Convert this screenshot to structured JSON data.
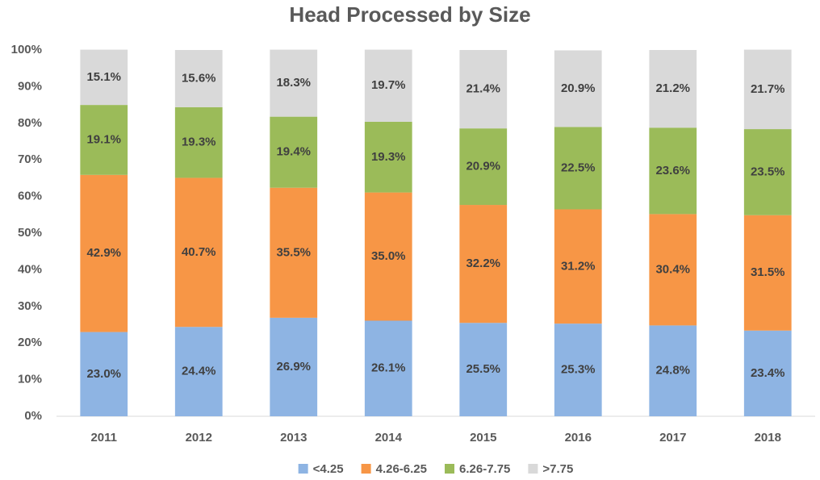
{
  "chart_data": {
    "type": "stacked_bar",
    "title": "Head Processed by Size",
    "categories": [
      "2011",
      "2012",
      "2013",
      "2014",
      "2015",
      "2016",
      "2017",
      "2018"
    ],
    "series": [
      {
        "name": "<4.25",
        "color": "#8eb4e3",
        "values": [
          23.0,
          24.4,
          26.9,
          26.1,
          25.5,
          25.3,
          24.8,
          23.4
        ],
        "value_labels": [
          "23.0%",
          "24.4%",
          "26.9%",
          "26.1%",
          "25.5%",
          "25.3%",
          "24.8%",
          "23.4%"
        ]
      },
      {
        "name": "4.26-6.25",
        "color": "#f79646",
        "values": [
          42.9,
          40.7,
          35.5,
          35.0,
          32.2,
          31.2,
          30.4,
          31.5
        ],
        "value_labels": [
          "42.9%",
          "40.7%",
          "35.5%",
          "35.0%",
          "32.2%",
          "31.2%",
          "30.4%",
          "31.5%"
        ]
      },
      {
        "name": "6.26-7.75",
        "color": "#9bbb59",
        "values": [
          19.1,
          19.3,
          19.4,
          19.3,
          20.9,
          22.5,
          23.6,
          23.5
        ],
        "value_labels": [
          "19.1%",
          "19.3%",
          "19.4%",
          "19.3%",
          "20.9%",
          "22.5%",
          "23.6%",
          "23.5%"
        ]
      },
      {
        "name": ">7.75",
        "color": "#d9d9d9",
        "values": [
          15.1,
          15.6,
          18.3,
          19.7,
          21.4,
          20.9,
          21.2,
          21.7
        ],
        "value_labels": [
          "15.1%",
          "15.6%",
          "18.3%",
          "19.7%",
          "21.4%",
          "20.9%",
          "21.2%",
          "21.7%"
        ]
      }
    ],
    "ylim": [
      0,
      100
    ],
    "yticks": [
      {
        "value": 0,
        "label": "0%"
      },
      {
        "value": 10,
        "label": "10%"
      },
      {
        "value": 20,
        "label": "20%"
      },
      {
        "value": 30,
        "label": "30%"
      },
      {
        "value": 40,
        "label": "40%"
      },
      {
        "value": 50,
        "label": "50%"
      },
      {
        "value": 60,
        "label": "60%"
      },
      {
        "value": 70,
        "label": "70%"
      },
      {
        "value": 80,
        "label": "80%"
      },
      {
        "value": 90,
        "label": "90%"
      },
      {
        "value": 100,
        "label": "100%"
      }
    ],
    "grid": false,
    "legend": "bottom"
  }
}
